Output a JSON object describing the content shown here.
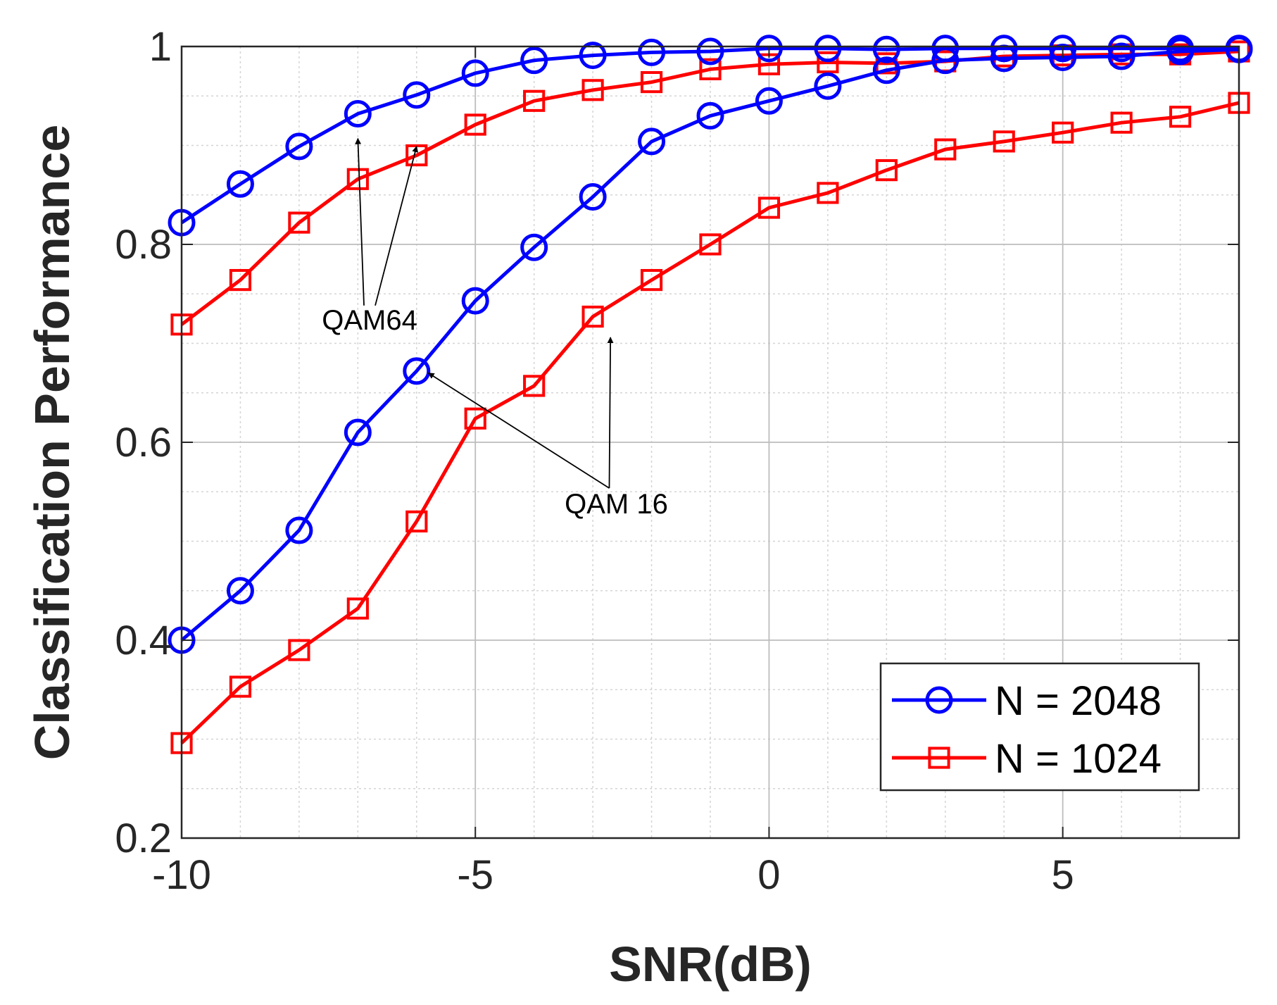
{
  "chart_data": {
    "type": "line",
    "title": "",
    "xlabel": "SNR(dB)",
    "ylabel": "Classification Performance",
    "xlim": [
      -10,
      8
    ],
    "ylim": [
      0.2,
      1.0
    ],
    "grid": true,
    "minor_grid": true,
    "x_ticks": [
      -10,
      -5,
      0,
      5
    ],
    "x_tick_labels": [
      "-10",
      "-5",
      "0",
      "5"
    ],
    "y_ticks": [
      0.2,
      0.4,
      0.6,
      0.8,
      1.0
    ],
    "y_tick_labels": [
      "0.2",
      "0.4",
      "0.6",
      "0.8",
      "1"
    ],
    "x": [
      -10,
      -9,
      -8,
      -7,
      -6,
      -5,
      -4,
      -3,
      -2,
      -1,
      0,
      1,
      2,
      3,
      4,
      5,
      6,
      7,
      8
    ],
    "legend_position": "bottom-right",
    "legend": [
      {
        "label": "N = 2048",
        "color": "#0000ff",
        "marker": "circle"
      },
      {
        "label": "N = 1024",
        "color": "#ff0000",
        "marker": "square"
      }
    ],
    "series": [
      {
        "name": "N = 2048 QAM64",
        "group": "N = 2048",
        "color": "#0000ff",
        "marker": "circle",
        "values": [
          0.822,
          0.861,
          0.899,
          0.932,
          0.951,
          0.973,
          0.986,
          0.991,
          0.994,
          0.995,
          0.998,
          0.998,
          0.997,
          0.998,
          0.998,
          0.998,
          0.998,
          0.998,
          0.998
        ]
      },
      {
        "name": "N = 1024 QAM64",
        "group": "N = 1024",
        "color": "#ff0000",
        "marker": "square",
        "values": [
          0.719,
          0.764,
          0.822,
          0.866,
          0.89,
          0.921,
          0.945,
          0.956,
          0.964,
          0.977,
          0.982,
          0.984,
          0.983,
          0.985,
          0.99,
          0.991,
          0.992,
          0.992,
          0.995
        ]
      },
      {
        "name": "N = 2048 QAM16",
        "group": "N = 2048",
        "color": "#0000ff",
        "marker": "circle",
        "values": [
          0.4,
          0.45,
          0.511,
          0.61,
          0.672,
          0.743,
          0.797,
          0.848,
          0.904,
          0.93,
          0.945,
          0.96,
          0.976,
          0.986,
          0.988,
          0.989,
          0.99,
          0.995,
          0.997
        ]
      },
      {
        "name": "N = 1024 QAM16",
        "group": "N = 1024",
        "color": "#ff0000",
        "marker": "square",
        "values": [
          0.296,
          0.353,
          0.39,
          0.432,
          0.52,
          0.624,
          0.657,
          0.727,
          0.764,
          0.8,
          0.837,
          0.852,
          0.875,
          0.896,
          0.904,
          0.913,
          0.923,
          0.929,
          0.943
        ]
      }
    ],
    "annotations": [
      {
        "text": "QAM64",
        "x": -6.8,
        "y": 0.714,
        "arrows_to": [
          [
            -7,
            0.907
          ],
          [
            -6,
            0.899
          ]
        ]
      },
      {
        "text": "QAM 16",
        "x": -2.6,
        "y": 0.528,
        "arrows_to": [
          [
            -5.8,
            0.67
          ],
          [
            -2.7,
            0.706
          ]
        ]
      }
    ]
  }
}
